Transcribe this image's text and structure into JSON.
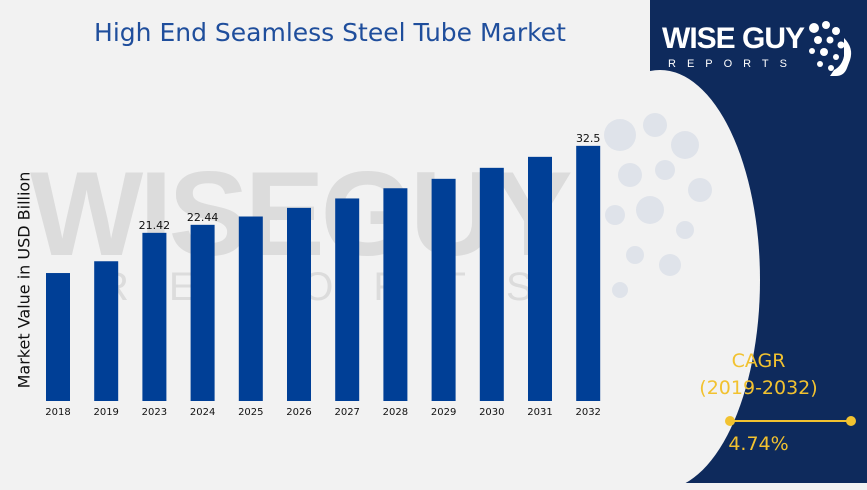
{
  "brand": {
    "name": "WISE GUY",
    "sub": "REPORTS"
  },
  "cagr": {
    "label": "CAGR",
    "period": "(2019-2032)",
    "value": "4.74%"
  },
  "colors": {
    "bar": "#003f96",
    "panel": "#0e2a5c",
    "accent": "#f2c230",
    "title": "#1f4e9c"
  },
  "chart_data": {
    "type": "bar",
    "title": "High End Seamless Steel Tube Market",
    "xlabel": "",
    "ylabel": "Market Value in USD Billion",
    "categories": [
      "2018",
      "2019",
      "2023",
      "2024",
      "2025",
      "2026",
      "2027",
      "2028",
      "2029",
      "2030",
      "2031",
      "2032"
    ],
    "values": [
      16.3,
      17.8,
      21.42,
      22.44,
      23.5,
      24.6,
      25.8,
      27.1,
      28.3,
      29.7,
      31.1,
      32.5
    ],
    "data_labels": [
      "",
      "",
      "21.42",
      "22.44",
      "",
      "",
      "",
      "",
      "",
      "",
      "",
      "32.5"
    ],
    "ylim": [
      0,
      33.5
    ],
    "grid": false,
    "legend": "none"
  }
}
